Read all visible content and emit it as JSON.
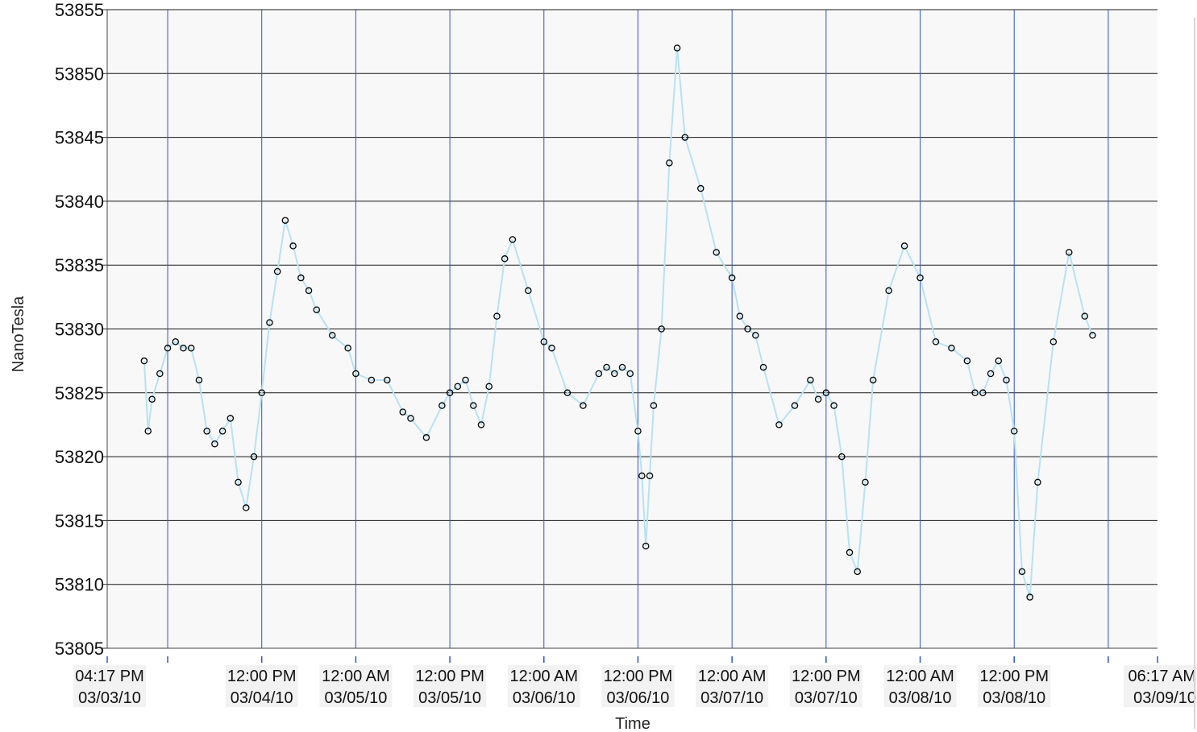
{
  "chart_data": {
    "type": "scatter",
    "title": "",
    "xlabel": "Time",
    "ylabel": "NanoTesla",
    "x_start": "03/03/10 04:17 PM",
    "x_end": "03/09/10 06:17 AM",
    "ylim": [
      53805,
      53855
    ],
    "y_ticks": [
      53805,
      53810,
      53815,
      53820,
      53825,
      53830,
      53835,
      53840,
      53845,
      53850,
      53855
    ],
    "x_ticks": [
      {
        "x": "03/03/10 04:17 PM",
        "time": "04:17 PM",
        "date": "03/03/10"
      },
      {
        "x": "03/04/10 12:00 AM",
        "time": "",
        "date": ""
      },
      {
        "x": "03/04/10 12:00 PM",
        "time": "12:00 PM",
        "date": "03/04/10"
      },
      {
        "x": "03/05/10 12:00 AM",
        "time": "12:00 AM",
        "date": "03/05/10"
      },
      {
        "x": "03/05/10 12:00 PM",
        "time": "12:00 PM",
        "date": "03/05/10"
      },
      {
        "x": "03/06/10 12:00 AM",
        "time": "12:00 AM",
        "date": "03/06/10"
      },
      {
        "x": "03/06/10 12:00 PM",
        "time": "12:00 PM",
        "date": "03/06/10"
      },
      {
        "x": "03/07/10 12:00 AM",
        "time": "12:00 AM",
        "date": "03/07/10"
      },
      {
        "x": "03/07/10 12:00 PM",
        "time": "12:00 PM",
        "date": "03/07/10"
      },
      {
        "x": "03/08/10 12:00 AM",
        "time": "12:00 AM",
        "date": "03/08/10"
      },
      {
        "x": "03/08/10 12:00 PM",
        "time": "12:00 PM",
        "date": "03/08/10"
      },
      {
        "x": "03/09/10 12:00 AM",
        "time": "",
        "date": ""
      },
      {
        "x": "03/09/10 06:17 AM",
        "time": "06:17 AM",
        "date": "03/09/10"
      }
    ],
    "grid": true,
    "series": [
      {
        "marker": "open-circle",
        "marker_color": "#000000",
        "line_color": "#b8e2f2",
        "x": [
          "03/03/10 09:00 PM",
          "03/03/10 09:30 PM",
          "03/03/10 10:00 PM",
          "03/03/10 11:00 PM",
          "03/04/10 12:00 AM",
          "03/04/10 01:00 AM",
          "03/04/10 02:00 AM",
          "03/04/10 03:00 AM",
          "03/04/10 04:00 AM",
          "03/04/10 05:00 AM",
          "03/04/10 06:00 AM",
          "03/04/10 07:00 AM",
          "03/04/10 08:00 AM",
          "03/04/10 09:00 AM",
          "03/04/10 10:00 AM",
          "03/04/10 11:00 AM",
          "03/04/10 12:00 PM",
          "03/04/10 01:00 PM",
          "03/04/10 02:00 PM",
          "03/04/10 03:00 PM",
          "03/04/10 04:00 PM",
          "03/04/10 05:00 PM",
          "03/04/10 06:00 PM",
          "03/04/10 07:00 PM",
          "03/04/10 09:00 PM",
          "03/04/10 11:00 PM",
          "03/05/10 12:00 AM",
          "03/05/10 02:00 AM",
          "03/05/10 04:00 AM",
          "03/05/10 06:00 AM",
          "03/05/10 07:00 AM",
          "03/05/10 09:00 AM",
          "03/05/10 11:00 AM",
          "03/05/10 12:00 PM",
          "03/05/10 01:00 PM",
          "03/05/10 02:00 PM",
          "03/05/10 03:00 PM",
          "03/05/10 04:00 PM",
          "03/05/10 05:00 PM",
          "03/05/10 06:00 PM",
          "03/05/10 07:00 PM",
          "03/05/10 08:00 PM",
          "03/05/10 10:00 PM",
          "03/06/10 12:00 AM",
          "03/06/10 01:00 AM",
          "03/06/10 03:00 AM",
          "03/06/10 05:00 AM",
          "03/06/10 07:00 AM",
          "03/06/10 08:00 AM",
          "03/06/10 09:00 AM",
          "03/06/10 10:00 AM",
          "03/06/10 11:00 AM",
          "03/06/10 12:00 PM",
          "03/06/10 12:30 PM",
          "03/06/10 01:00 PM",
          "03/06/10 01:30 PM",
          "03/06/10 02:00 PM",
          "03/06/10 03:00 PM",
          "03/06/10 04:00 PM",
          "03/06/10 05:00 PM",
          "03/06/10 06:00 PM",
          "03/06/10 08:00 PM",
          "03/06/10 10:00 PM",
          "03/07/10 12:00 AM",
          "03/07/10 01:00 AM",
          "03/07/10 02:00 AM",
          "03/07/10 03:00 AM",
          "03/07/10 04:00 AM",
          "03/07/10 06:00 AM",
          "03/07/10 08:00 AM",
          "03/07/10 10:00 AM",
          "03/07/10 11:00 AM",
          "03/07/10 12:00 PM",
          "03/07/10 01:00 PM",
          "03/07/10 02:00 PM",
          "03/07/10 03:00 PM",
          "03/07/10 04:00 PM",
          "03/07/10 05:00 PM",
          "03/07/10 06:00 PM",
          "03/07/10 08:00 PM",
          "03/07/10 10:00 PM",
          "03/08/10 12:00 AM",
          "03/08/10 02:00 AM",
          "03/08/10 04:00 AM",
          "03/08/10 06:00 AM",
          "03/08/10 07:00 AM",
          "03/08/10 08:00 AM",
          "03/08/10 09:00 AM",
          "03/08/10 10:00 AM",
          "03/08/10 11:00 AM",
          "03/08/10 12:00 PM",
          "03/08/10 01:00 PM",
          "03/08/10 02:00 PM",
          "03/08/10 03:00 PM",
          "03/08/10 05:00 PM",
          "03/08/10 07:00 PM",
          "03/08/10 09:00 PM",
          "03/08/10 10:00 PM"
        ],
        "y": [
          53827.5,
          53822.0,
          53824.5,
          53826.5,
          53828.5,
          53829.0,
          53828.5,
          53828.5,
          53826.0,
          53822.0,
          53821.0,
          53822.0,
          53823.0,
          53818.0,
          53816.0,
          53820.0,
          53825.0,
          53830.5,
          53834.5,
          53838.5,
          53836.5,
          53834.0,
          53833.0,
          53831.5,
          53829.5,
          53828.5,
          53826.5,
          53826.0,
          53826.0,
          53823.5,
          53823.0,
          53821.5,
          53824.0,
          53825.0,
          53825.5,
          53826.0,
          53824.0,
          53822.5,
          53825.5,
          53831.0,
          53835.5,
          53837.0,
          53833.0,
          53829.0,
          53828.5,
          53825.0,
          53824.0,
          53826.5,
          53827.0,
          53826.5,
          53827.0,
          53826.5,
          53822.0,
          53818.5,
          53813.0,
          53818.5,
          53824.0,
          53830.0,
          53843.0,
          53852.0,
          53845.0,
          53841.0,
          53836.0,
          53834.0,
          53831.0,
          53830.0,
          53829.5,
          53827.0,
          53822.5,
          53824.0,
          53826.0,
          53824.5,
          53825.0,
          53824.0,
          53820.0,
          53812.5,
          53811.0,
          53818.0,
          53826.0,
          53833.0,
          53836.5,
          53834.0,
          53829.0,
          53828.5,
          53827.5,
          53825.0,
          53825.0,
          53826.5,
          53827.5,
          53826.0,
          53822.0,
          53811.0,
          53809.0,
          53818.0,
          53829.0,
          53836.0,
          53831.0,
          53829.5
        ]
      }
    ]
  }
}
